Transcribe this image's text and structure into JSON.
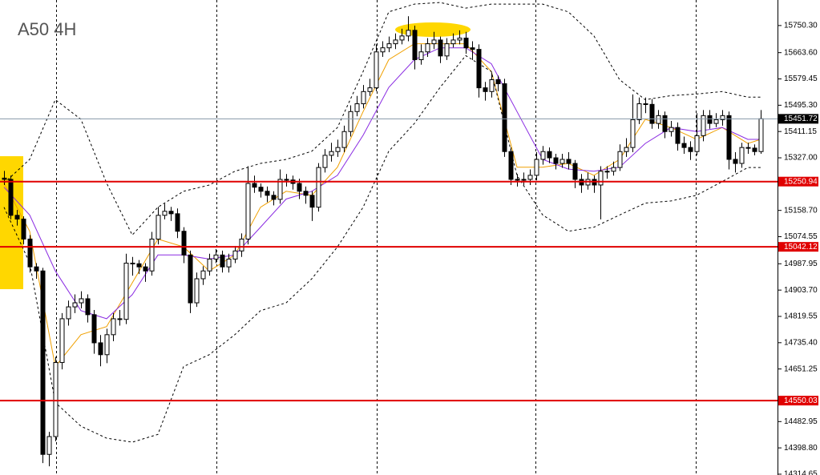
{
  "chart_data": {
    "type": "candlestick",
    "title": "A50 4H",
    "xlim": [
      -0.625,
      120.625
    ],
    "ylim": [
      14312,
      15832
    ],
    "xticks": [
      8.1,
      33.1,
      58.1,
      82.9,
      107.9
    ],
    "yticks": [
      {
        "value": 15750.3,
        "label": "15750.30"
      },
      {
        "value": 15663.6,
        "label": "15663.60"
      },
      15579.45,
      {
        "value": 15495.3,
        "label": "15495.30"
      },
      15411.15,
      {
        "value": 15327,
        "label": "15327.00"
      },
      {
        "value": 15158.7,
        "label": "15158.70"
      },
      15074.55,
      14987.95,
      {
        "value": 14903.7,
        "label": "14903.70"
      },
      14819.55,
      {
        "value": 14735.4,
        "label": "14735.40"
      },
      14651.25,
      14482.95,
      {
        "value": 14398.8,
        "label": "14398.80"
      },
      14314.65
    ],
    "up_color": "#ffffff",
    "down_color": "#000000",
    "open": [
      15262,
      15258,
      15143,
      15131,
      15067,
      14978,
      14965,
      14378,
      14435,
      14672,
      14812,
      14850,
      14863,
      14876,
      14825,
      14735,
      14697,
      14761,
      14812,
      14810,
      14990,
      14988,
      14978,
      14965,
      15067,
      15143,
      15156,
      15148,
      15092,
      15016,
      14863,
      14940,
      14965,
      15003,
      15016,
      14978,
      15003,
      15029,
      15067,
      15245,
      15233,
      15220,
      15207,
      15194,
      15258,
      15256,
      15245,
      15220,
      15207,
      15169,
      15296,
      15335,
      15347,
      15360,
      15411,
      15475,
      15500,
      15539,
      15551,
      15666,
      15679,
      15692,
      15704,
      15717,
      15735,
      15641,
      15666,
      15692,
      15704,
      15653,
      15692,
      15704,
      15710,
      15679,
      15674,
      15551,
      15539,
      15577,
      15564,
      15347,
      15258,
      15256,
      15258,
      15271,
      15322,
      15347,
      15327,
      15309,
      15322,
      15309,
      15258,
      15240,
      15258,
      15240,
      15284,
      15284,
      15296,
      15347,
      15360,
      15449,
      15500,
      15498,
      15437,
      15462,
      15411,
      15424,
      15373,
      15360,
      15347,
      15398,
      15462,
      15437,
      15449,
      15462,
      15322,
      15309,
      15360,
      15358,
      15347
    ],
    "high": [
      15285,
      15270,
      15160,
      15140,
      15080,
      14990,
      14975,
      14450,
      14690,
      14830,
      14870,
      14890,
      14900,
      14890,
      14840,
      14760,
      14780,
      14830,
      14840,
      15020,
      15010,
      15000,
      14990,
      15090,
      15170,
      15180,
      15170,
      15165,
      15105,
      15030,
      14960,
      14980,
      15020,
      15035,
      15030,
      15020,
      15045,
      15085,
      15300,
      15270,
      15245,
      15235,
      15220,
      15290,
      15275,
      15270,
      15260,
      15235,
      15220,
      15310,
      15355,
      15375,
      15385,
      15430,
      15495,
      15525,
      15560,
      15580,
      15690,
      15700,
      15715,
      15725,
      15740,
      15780,
      15750,
      15690,
      15710,
      15730,
      15715,
      15710,
      15725,
      15735,
      15730,
      15700,
      15690,
      15570,
      15600,
      15590,
      15580,
      15360,
      15275,
      15280,
      15290,
      15345,
      15365,
      15360,
      15340,
      15340,
      15345,
      15320,
      15275,
      15280,
      15270,
      15300,
      15300,
      15315,
      15370,
      15390,
      15530,
      15520,
      15520,
      15515,
      15480,
      15475,
      15445,
      15440,
      15395,
      15380,
      15470,
      15480,
      15480,
      15470,
      15480,
      15475,
      15345,
      15375,
      15375,
      15370,
      15480
    ],
    "low": [
      15240,
      15130,
      15110,
      15050,
      14960,
      14940,
      14350,
      14340,
      14420,
      14650,
      14790,
      14830,
      14845,
      14800,
      14700,
      14660,
      14670,
      14740,
      14790,
      14795,
      14950,
      14955,
      14930,
      14950,
      15050,
      15130,
      15125,
      15070,
      14990,
      14830,
      14850,
      14920,
      14950,
      14990,
      14960,
      14960,
      14990,
      15010,
      15050,
      15215,
      15200,
      15185,
      15175,
      15180,
      15235,
      15225,
      15195,
      15180,
      15125,
      15155,
      15280,
      15315,
      15330,
      15345,
      15395,
      15460,
      15485,
      15525,
      15540,
      15650,
      15665,
      15675,
      15690,
      15700,
      15610,
      15625,
      15650,
      15675,
      15630,
      15640,
      15680,
      15690,
      15660,
      15640,
      15520,
      15510,
      15520,
      15540,
      15330,
      15240,
      15235,
      15240,
      15240,
      15255,
      15305,
      15310,
      15290,
      15295,
      15290,
      15230,
      15215,
      15225,
      15215,
      15130,
      15260,
      15270,
      15285,
      15330,
      15345,
      15435,
      15470,
      15420,
      15420,
      15390,
      15395,
      15350,
      15340,
      15320,
      15335,
      15380,
      15420,
      15425,
      15430,
      15290,
      15280,
      15295,
      15340,
      15335,
      15340
    ],
    "close": [
      15258,
      15143,
      15131,
      15067,
      14978,
      14965,
      14378,
      14435,
      14672,
      14812,
      14850,
      14863,
      14876,
      14825,
      14735,
      14697,
      14761,
      14812,
      14810,
      14990,
      14988,
      14978,
      14965,
      15067,
      15143,
      15156,
      15148,
      15092,
      15016,
      14863,
      14940,
      14965,
      15003,
      15016,
      14978,
      15003,
      15029,
      15067,
      15245,
      15233,
      15220,
      15207,
      15194,
      15258,
      15256,
      15245,
      15220,
      15207,
      15169,
      15296,
      15335,
      15347,
      15360,
      15411,
      15475,
      15500,
      15539,
      15551,
      15666,
      15679,
      15692,
      15704,
      15717,
      15735,
      15641,
      15666,
      15692,
      15704,
      15653,
      15692,
      15704,
      15710,
      15679,
      15674,
      15551,
      15539,
      15577,
      15564,
      15347,
      15258,
      15256,
      15258,
      15271,
      15322,
      15347,
      15327,
      15309,
      15322,
      15309,
      15258,
      15240,
      15258,
      15240,
      15284,
      15284,
      15296,
      15347,
      15360,
      15449,
      15500,
      15498,
      15437,
      15462,
      15411,
      15424,
      15373,
      15360,
      15347,
      15398,
      15462,
      15437,
      15449,
      15462,
      15322,
      15309,
      15360,
      15358,
      15347,
      15452
    ],
    "lines": [
      {
        "color": "#f0a000",
        "style": "solid",
        "x": [
          0,
          4,
          8,
          12,
          16,
          20,
          24,
          28,
          32,
          36,
          40,
          44,
          48,
          52,
          56,
          60,
          64,
          68,
          72,
          76,
          80,
          84,
          88,
          92,
          96,
          100,
          104,
          108,
          112,
          116,
          118
        ],
        "values": [
          15246,
          15092,
          14659,
          14761,
          14787,
          14927,
          15067,
          15042,
          14965,
          15016,
          15169,
          15220,
          15207,
          15297,
          15475,
          15641,
          15692,
          15692,
          15692,
          15603,
          15297,
          15297,
          15309,
          15271,
          15322,
          15450,
          15424,
          15386,
          15424,
          15373,
          15386
        ]
      },
      {
        "color": "#8a2be2",
        "style": "solid",
        "x": [
          0,
          4,
          8,
          12,
          16,
          20,
          24,
          28,
          32,
          36,
          40,
          44,
          48,
          52,
          56,
          60,
          64,
          68,
          72,
          76,
          80,
          84,
          88,
          92,
          96,
          100,
          104,
          108,
          112,
          116,
          118
        ],
        "values": [
          15233,
          15144,
          14965,
          14838,
          14812,
          14889,
          15016,
          15016,
          15003,
          15016,
          15105,
          15195,
          15220,
          15271,
          15399,
          15552,
          15641,
          15679,
          15679,
          15628,
          15475,
          15322,
          15291,
          15284,
          15297,
          15373,
          15424,
          15411,
          15424,
          15386,
          15386
        ]
      },
      {
        "color": "#000000",
        "style": "dashed",
        "x": [
          0,
          4,
          8,
          12,
          16,
          20,
          24,
          28,
          32,
          36,
          40,
          44,
          48,
          52,
          56,
          60,
          64,
          68,
          72,
          76,
          80,
          84,
          88,
          92,
          96,
          100,
          104,
          108,
          112,
          116,
          118
        ],
        "values": [
          15246,
          15322,
          15513,
          15450,
          15246,
          15080,
          15169,
          15220,
          15240,
          15284,
          15309,
          15322,
          15348,
          15424,
          15603,
          15794,
          15819,
          15824,
          15806,
          15819,
          15819,
          15819,
          15794,
          15717,
          15577,
          15513,
          15526,
          15531,
          15539,
          15521,
          15521
        ]
      },
      {
        "color": "#000000",
        "style": "dashed",
        "x": [
          0,
          4,
          8,
          12,
          16,
          20,
          24,
          28,
          32,
          36,
          40,
          44,
          48,
          52,
          56,
          60,
          64,
          68,
          72,
          76,
          80,
          84,
          88,
          92,
          96,
          100,
          104,
          108,
          112,
          116,
          118
        ],
        "values": [
          15169,
          14991,
          14544,
          14468,
          14430,
          14417,
          14442,
          14659,
          14697,
          14761,
          14838,
          14863,
          14940,
          15042,
          15169,
          15348,
          15437,
          15552,
          15654,
          15603,
          15271,
          15144,
          15092,
          15105,
          15144,
          15182,
          15189,
          15207,
          15251,
          15296,
          15296
        ]
      }
    ],
    "levels": [
      {
        "value": 15250.94,
        "color": "#e00000"
      },
      {
        "value": 15042.12,
        "color": "#e00000"
      },
      {
        "value": 14550.03,
        "color": "#e00000"
      }
    ],
    "current": {
      "value": 15451.72,
      "color": "#8497a8"
    }
  }
}
